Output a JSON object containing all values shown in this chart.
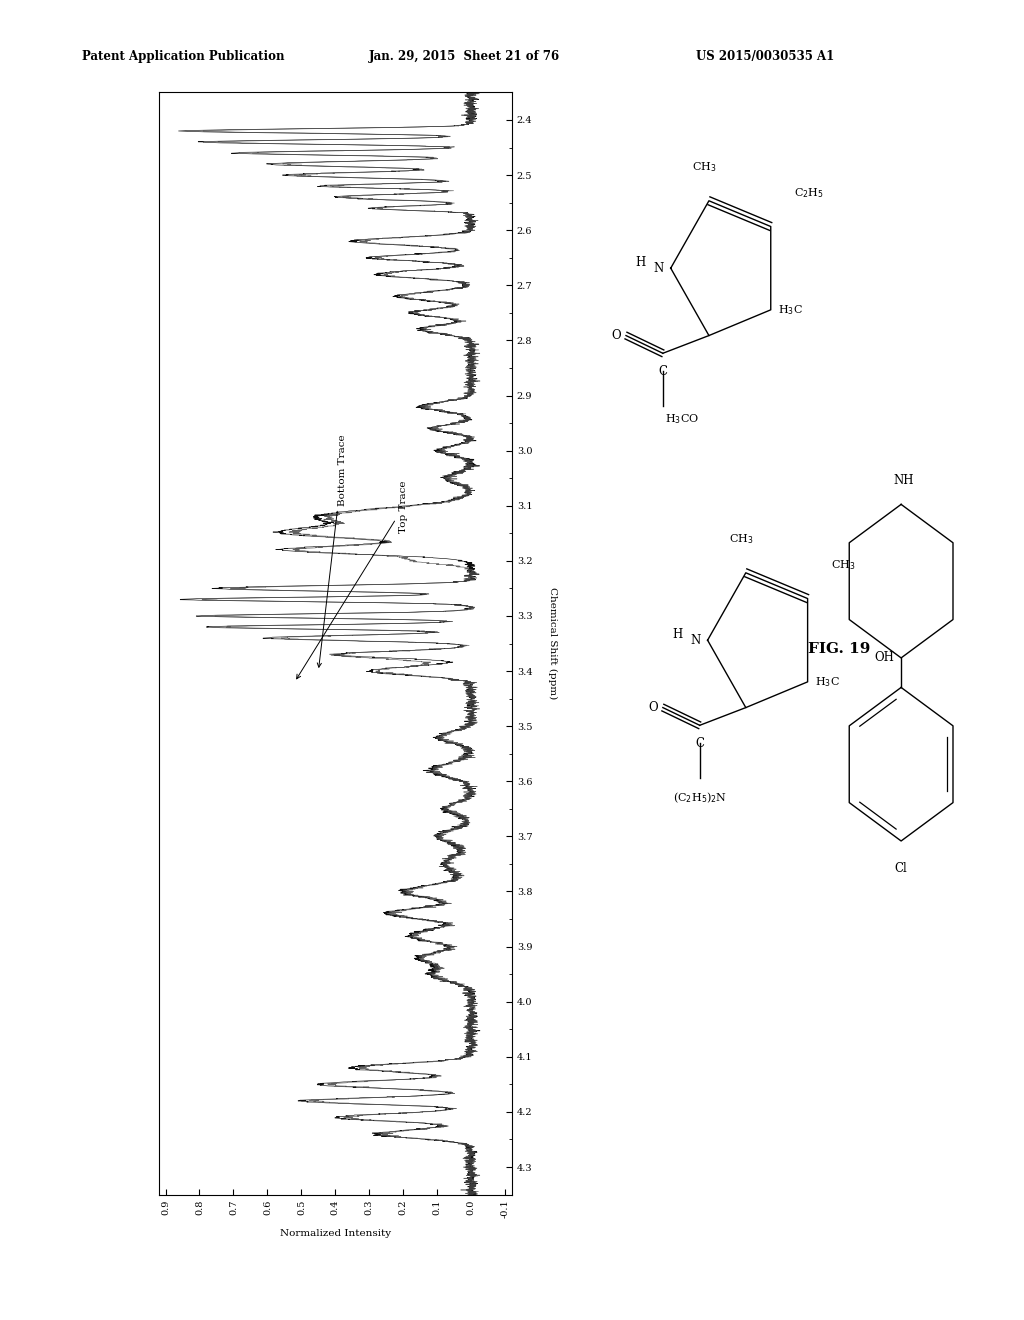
{
  "title_left": "Patent Application Publication",
  "title_mid": "Jan. 29, 2015  Sheet 21 of 76",
  "title_right": "US 2015/0030535 A1",
  "fig_label": "FIG. 19",
  "background_color": "#ffffff",
  "x_label": "Chemical Shift (ppm)",
  "y_label": "Normalized Intensity",
  "top_trace_label": "Top Trace",
  "bottom_trace_label": "Bottom Trace",
  "chem_shift_ticks": [
    2.4,
    2.5,
    2.6,
    2.7,
    2.8,
    2.9,
    3.0,
    3.1,
    3.2,
    3.3,
    3.4,
    3.5,
    3.6,
    3.7,
    3.8,
    3.9,
    4.0,
    4.1,
    4.2,
    4.3
  ],
  "intensity_ticks": [
    0.9,
    0.8,
    0.7,
    0.6,
    0.5,
    0.4,
    0.3,
    0.2,
    0.1,
    0.0,
    -0.1
  ]
}
